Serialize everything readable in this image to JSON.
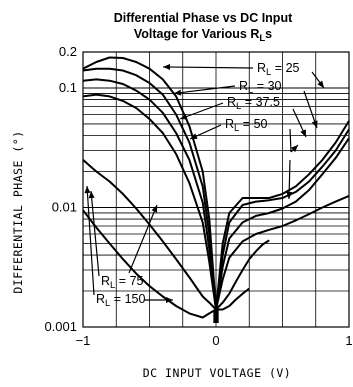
{
  "chart_data": {
    "type": "line",
    "title_line1": "Differential Phase vs DC Input",
    "title_line2": "Voltage for Various R",
    "title_line2_sub": "L",
    "title_line2_suffix": "s",
    "xlabel": "DC INPUT VOLTAGE (V)",
    "ylabel": "DIFFERENTIAL PHASE (°)",
    "xlim": [
      -1,
      1
    ],
    "ylim": [
      0.001,
      0.2
    ],
    "yscale": "log",
    "grid": true,
    "x_ticks": [
      {
        "v": -1,
        "label": "−1"
      },
      {
        "v": 0,
        "label": "0"
      },
      {
        "v": 1,
        "label": "1"
      }
    ],
    "y_ticks": [
      {
        "v": 0.2,
        "label": "0.2"
      },
      {
        "v": 0.1,
        "label": "0.1"
      },
      {
        "v": 0.01,
        "label": "0.01"
      },
      {
        "v": 0.001,
        "label": "0.001"
      }
    ],
    "annotation_prefix": "R",
    "annotation_sub": "L",
    "series": [
      {
        "name": "25",
        "label": "= 25",
        "x": [
          -1.0,
          -0.9,
          -0.8,
          -0.7,
          -0.6,
          -0.5,
          -0.4,
          -0.3,
          -0.2,
          -0.1,
          -0.05,
          0.0,
          0.05,
          0.1,
          0.2,
          0.3,
          0.4,
          0.5,
          0.6,
          0.7,
          0.8,
          0.9,
          1.0
        ],
        "y": [
          0.145,
          0.165,
          0.18,
          0.178,
          0.165,
          0.145,
          0.118,
          0.085,
          0.048,
          0.02,
          0.008,
          0.0014,
          0.005,
          0.009,
          0.012,
          0.012,
          0.012,
          0.013,
          0.015,
          0.019,
          0.025,
          0.035,
          0.053
        ]
      },
      {
        "name": "30",
        "label": "= 30",
        "x": [
          -1.0,
          -0.9,
          -0.8,
          -0.7,
          -0.6,
          -0.5,
          -0.4,
          -0.3,
          -0.2,
          -0.1,
          -0.05,
          0.0,
          0.05,
          0.1,
          0.2,
          0.3,
          0.4,
          0.5,
          0.6,
          0.7,
          0.8,
          0.9,
          1.0
        ],
        "y": [
          0.14,
          0.145,
          0.145,
          0.14,
          0.128,
          0.11,
          0.088,
          0.06,
          0.035,
          0.015,
          0.006,
          0.0014,
          0.004,
          0.0075,
          0.0105,
          0.0112,
          0.0115,
          0.012,
          0.0135,
          0.0165,
          0.022,
          0.03,
          0.045
        ]
      },
      {
        "name": "37.5",
        "label": "= 37.5",
        "x": [
          -1.0,
          -0.9,
          -0.8,
          -0.7,
          -0.6,
          -0.5,
          -0.4,
          -0.3,
          -0.2,
          -0.1,
          -0.05,
          0.0,
          0.05,
          0.1,
          0.2,
          0.3,
          0.4,
          0.5,
          0.6,
          0.7,
          0.8,
          0.9,
          1.0
        ],
        "y": [
          0.115,
          0.118,
          0.115,
          0.108,
          0.095,
          0.08,
          0.062,
          0.042,
          0.025,
          0.011,
          0.0045,
          0.0014,
          0.0032,
          0.0055,
          0.0075,
          0.0085,
          0.009,
          0.0098,
          0.0112,
          0.014,
          0.019,
          0.026,
          0.038
        ]
      },
      {
        "name": "50",
        "label": "= 50",
        "x": [
          -1.0,
          -0.9,
          -0.8,
          -0.7,
          -0.6,
          -0.5,
          -0.4,
          -0.3,
          -0.2,
          -0.1,
          -0.05,
          0.0,
          0.05,
          0.1,
          0.2,
          0.3,
          0.4,
          0.5,
          0.6,
          0.7,
          0.8,
          0.9,
          1.0
        ],
        "y": [
          0.085,
          0.088,
          0.085,
          0.078,
          0.068,
          0.055,
          0.042,
          0.028,
          0.016,
          0.0075,
          0.0035,
          0.0014,
          0.0025,
          0.0038,
          0.0052,
          0.006,
          0.0065,
          0.007,
          0.0078,
          0.0088,
          0.01,
          0.0112,
          0.0125
        ]
      },
      {
        "name": "75",
        "label": "= 75",
        "x": [
          -1.0,
          -0.9,
          -0.8,
          -0.7,
          -0.6,
          -0.5,
          -0.4,
          -0.3,
          -0.2,
          -0.1,
          -0.05,
          0.0,
          0.05,
          0.1,
          0.15,
          0.2,
          0.25,
          0.3,
          0.35,
          0.4
        ],
        "y": [
          0.025,
          0.02,
          0.0165,
          0.013,
          0.0098,
          0.0072,
          0.0052,
          0.0037,
          0.0026,
          0.0018,
          0.0016,
          0.0014,
          0.0016,
          0.0019,
          0.0024,
          0.003,
          0.0037,
          0.0043,
          0.0049,
          0.0053
        ]
      },
      {
        "name": "150",
        "label": "= 150",
        "x": [
          -1.0,
          -0.9,
          -0.8,
          -0.7,
          -0.6,
          -0.5,
          -0.4,
          -0.3,
          -0.2,
          -0.1,
          -0.05,
          0.0,
          0.05,
          0.1,
          0.15,
          0.2,
          0.25
        ],
        "y": [
          0.0095,
          0.0068,
          0.005,
          0.0037,
          0.0028,
          0.0022,
          0.0018,
          0.0015,
          0.0013,
          0.0012,
          0.0013,
          0.0014,
          0.0014,
          0.0015,
          0.0017,
          0.0019,
          0.0021
        ]
      }
    ]
  }
}
